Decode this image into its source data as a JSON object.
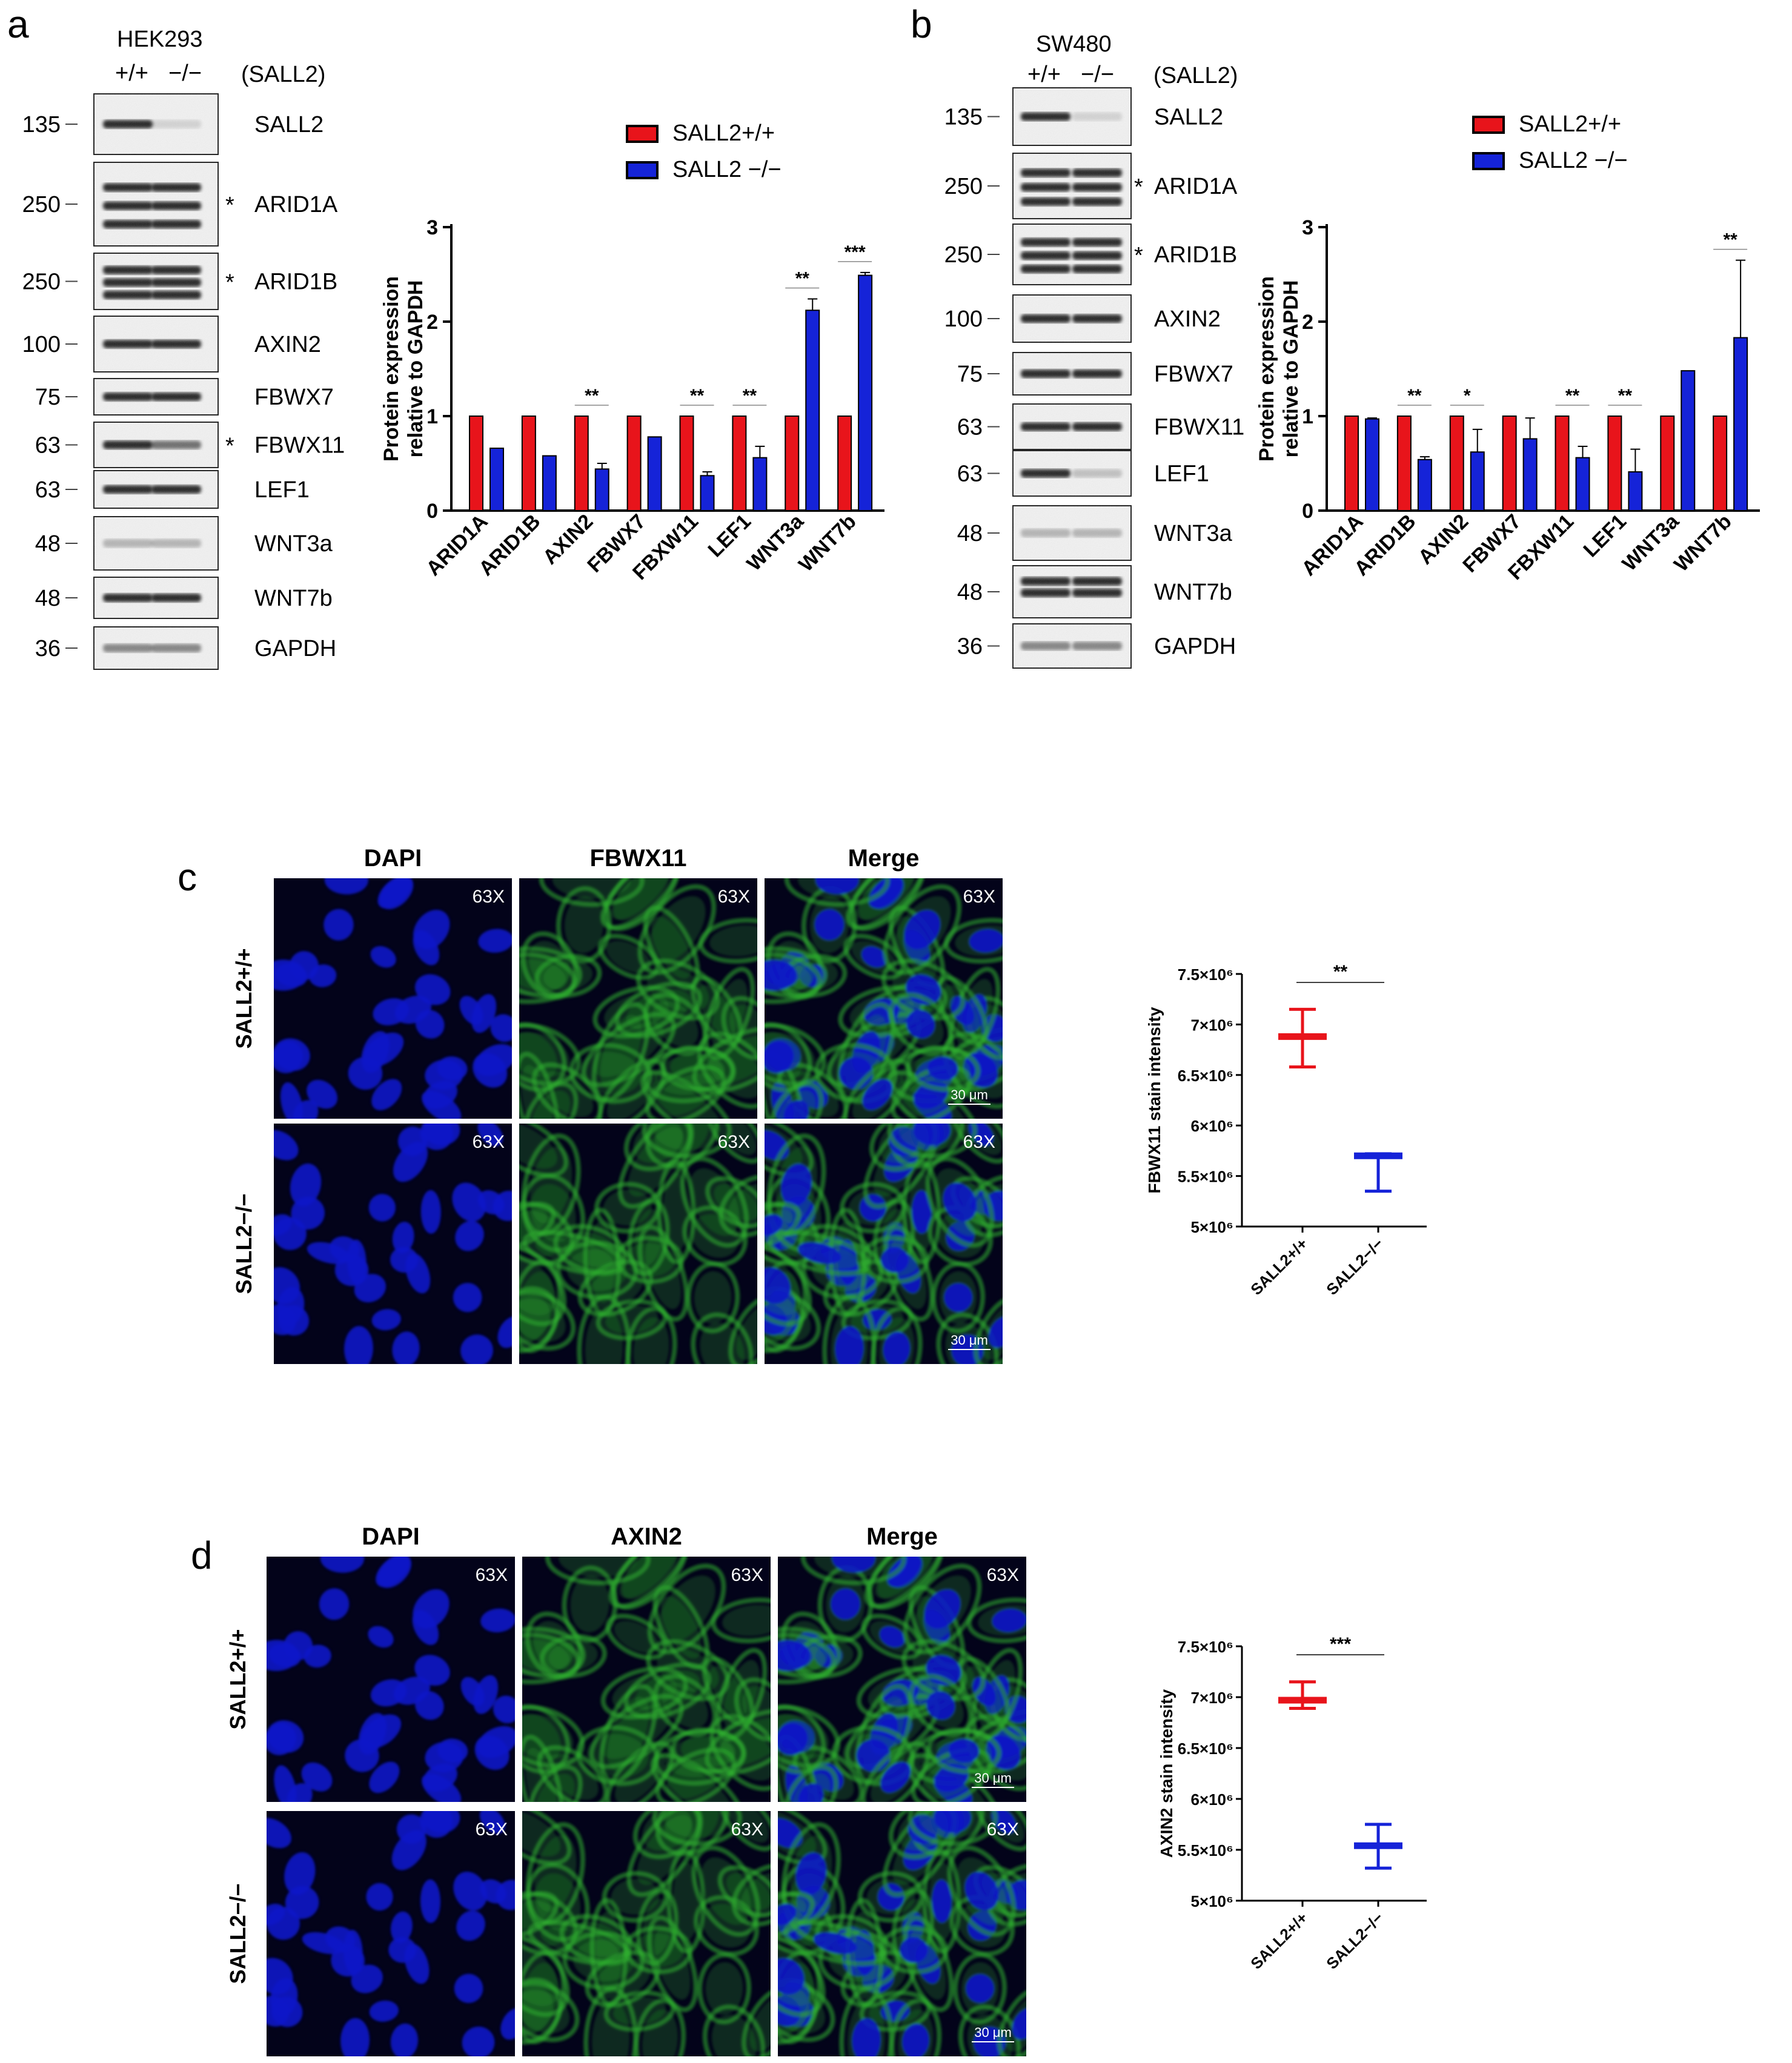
{
  "panels": {
    "a": {
      "letter": "a",
      "cell_line": "HEK293",
      "genotypes": [
        "+/+",
        "−/−"
      ],
      "genotype_caption": "(SALL2)",
      "blots": [
        {
          "label": "SALL2",
          "mw": "135",
          "star": ""
        },
        {
          "label": "ARID1A",
          "mw": "250",
          "star": "*"
        },
        {
          "label": "ARID1B",
          "mw": "250",
          "star": "*"
        },
        {
          "label": "AXIN2",
          "mw": "100",
          "star": ""
        },
        {
          "label": "FBWX7",
          "mw": "75",
          "star": ""
        },
        {
          "label": "FBWX11",
          "mw": "63",
          "star": "*"
        },
        {
          "label": "LEF1",
          "mw": "63",
          "star": ""
        },
        {
          "label": "WNT3a",
          "mw": "48",
          "star": ""
        },
        {
          "label": "WNT7b",
          "mw": "48",
          "star": ""
        },
        {
          "label": "GAPDH",
          "mw": "36",
          "star": ""
        }
      ]
    },
    "b": {
      "letter": "b",
      "cell_line": "SW480",
      "genotypes": [
        "+/+",
        "−/−"
      ],
      "genotype_caption": "(SALL2)",
      "blots": [
        {
          "label": "SALL2",
          "mw": "135",
          "star": ""
        },
        {
          "label": "ARID1A",
          "mw": "250",
          "star": "*"
        },
        {
          "label": "ARID1B",
          "mw": "250",
          "star": "*"
        },
        {
          "label": "AXIN2",
          "mw": "100",
          "star": ""
        },
        {
          "label": "FBWX7",
          "mw": "75",
          "star": ""
        },
        {
          "label": "FBWX11",
          "mw": "63",
          "star": ""
        },
        {
          "label": "LEF1",
          "mw": "63",
          "star": ""
        },
        {
          "label": "WNT3a",
          "mw": "48",
          "star": ""
        },
        {
          "label": "WNT7b",
          "mw": "48",
          "star": ""
        },
        {
          "label": "GAPDH",
          "mw": "36",
          "star": ""
        }
      ]
    },
    "c": {
      "letter": "c",
      "columns": [
        "DAPI",
        "FBWX11",
        "Merge"
      ],
      "rows": [
        "SALL2+/+",
        "SALL2−/−"
      ],
      "magnification": "63X",
      "scale_bar": "30 μm"
    },
    "d": {
      "letter": "d",
      "columns": [
        "DAPI",
        "AXIN2",
        "Merge"
      ],
      "rows": [
        "SALL2+/+",
        "SALL2−/−"
      ],
      "magnification": "63X",
      "scale_bar": "30 μm"
    }
  },
  "colors": {
    "wt": "#e8141b",
    "ko": "#1523d8",
    "dapi": "#0a16c8",
    "green": "#2fb02f",
    "micro_bg": "#03031a"
  },
  "chart_data": [
    {
      "type": "bar",
      "panel": "a",
      "ylabel": "Protein expression relative to GAPDH",
      "ylim": [
        0,
        3
      ],
      "yticks": [
        0,
        1,
        2,
        3
      ],
      "categories": [
        "ARID1A",
        "ARID1B",
        "AXIN2",
        "FBWX7",
        "FBXW11",
        "LEF1",
        "WNT3a",
        "WNT7b"
      ],
      "series": [
        {
          "name": "SALL2+/+",
          "values": [
            1,
            1,
            1,
            1,
            1,
            1,
            1,
            1
          ],
          "errors": [
            0,
            0,
            0,
            0,
            0,
            0,
            0,
            0
          ]
        },
        {
          "name": "SALL2 −/−",
          "values": [
            0.66,
            0.58,
            0.44,
            0.78,
            0.37,
            0.56,
            2.12,
            2.49
          ],
          "errors": [
            0,
            0,
            0.06,
            0,
            0.04,
            0.12,
            0.12,
            0.03
          ]
        }
      ],
      "significance": [
        "",
        "",
        "**",
        "",
        "**",
        "**",
        "**",
        "***"
      ],
      "legend": "top"
    },
    {
      "type": "bar",
      "panel": "b",
      "ylabel": "Protein expression relative to GAPDH",
      "ylim": [
        0,
        3
      ],
      "yticks": [
        0,
        1,
        2,
        3
      ],
      "categories": [
        "ARID1A",
        "ARID1B",
        "AXIN2",
        "FBWX7",
        "FBXW11",
        "LEF1",
        "WNT3a",
        "WNT7b"
      ],
      "series": [
        {
          "name": "SALL2+/+",
          "values": [
            1,
            1,
            1,
            1,
            1,
            1,
            1,
            1
          ],
          "errors": [
            0,
            0,
            0,
            0,
            0,
            0,
            0,
            0
          ]
        },
        {
          "name": "SALL2 −/−",
          "values": [
            0.97,
            0.54,
            0.62,
            0.76,
            0.56,
            0.41,
            1.48,
            1.83
          ],
          "errors": [
            0.01,
            0.03,
            0.24,
            0.22,
            0.12,
            0.24,
            0,
            0.82
          ]
        }
      ],
      "significance": [
        "",
        "**",
        "*",
        "",
        "**",
        "**",
        "",
        "**"
      ],
      "legend": "top"
    },
    {
      "type": "scatter",
      "panel": "c",
      "ylabel": "FBWX11 stain intensity",
      "ylim": [
        5000000,
        7500000
      ],
      "yticks": [
        "5×10⁶",
        "5.5×10⁶",
        "6×10⁶",
        "6.5×10⁶",
        "7×10⁶",
        "7.5×10⁶"
      ],
      "ytick_values": [
        5000000,
        5500000,
        6000000,
        6500000,
        7000000,
        7500000
      ],
      "categories": [
        "SALL2+/+",
        "SALL2−/−"
      ],
      "mean": [
        6880000,
        5700000
      ],
      "max": [
        7150000,
        5720000
      ],
      "min": [
        6580000,
        5350000
      ],
      "significance": "**"
    },
    {
      "type": "scatter",
      "panel": "d",
      "ylabel": "AXIN2 stain intensity",
      "ylim": [
        5000000,
        7500000
      ],
      "yticks": [
        "5×10⁶",
        "5.5×10⁶",
        "6×10⁶",
        "6.5×10⁶",
        "7×10⁶",
        "7.5×10⁶"
      ],
      "ytick_values": [
        5000000,
        5500000,
        6000000,
        6500000,
        7000000,
        7500000
      ],
      "categories": [
        "SALL2+/+",
        "SALL2−/−"
      ],
      "mean": [
        6970000,
        5540000
      ],
      "max": [
        7150000,
        5750000
      ],
      "min": [
        6890000,
        5320000
      ],
      "significance": "***"
    }
  ]
}
